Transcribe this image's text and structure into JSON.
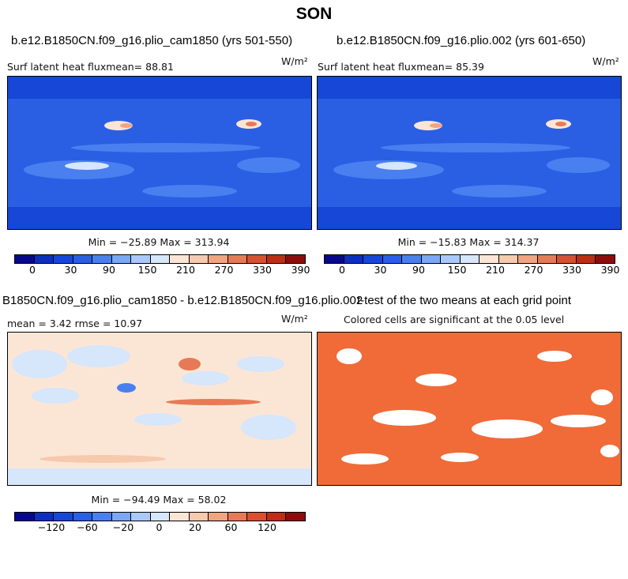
{
  "figure": {
    "title": "SON"
  },
  "panels": [
    {
      "title": "b.e12.B1850CN.f09_g16.plio_cam1850 (yrs 501-550)",
      "left_label": "Surf latent heat fluxmean=  88.81",
      "units": "W/m²",
      "stats": "Min = −25.89 Max = 313.94",
      "ticks": [
        "0",
        "30",
        "90",
        "150",
        "210",
        "270",
        "330",
        "390"
      ]
    },
    {
      "title": "b.e12.B1850CN.f09_g16.plio.002 (yrs 601-650)",
      "left_label": "Surf latent heat fluxmean=  85.39",
      "units": "W/m²",
      "stats": "Min = −15.83 Max = 314.37",
      "ticks": [
        "0",
        "30",
        "90",
        "150",
        "210",
        "270",
        "330",
        "390"
      ]
    },
    {
      "title": "B1850CN.f09_g16.plio_cam1850 - b.e12.B1850CN.f09_g16.plio.002",
      "left_label": "mean =   3.42    rmse =  10.97",
      "units": "W/m²",
      "stats": "Min = −94.49 Max = 58.02",
      "ticks": [
        "−120",
        "−60",
        "−20",
        "0",
        "20",
        "60",
        "120"
      ]
    },
    {
      "title": "t-test of the two means at each grid point",
      "left_label": "Colored cells are significant at the 0.05 level"
    }
  ],
  "colors": {
    "abs_scale": [
      "#08088f",
      "#0c2fc0",
      "#1747d6",
      "#2a5fe4",
      "#4a7ff0",
      "#7aa7f6",
      "#a9c9fb",
      "#d6e6fb",
      "#fbe6d6",
      "#f7c9ad",
      "#f1a482",
      "#e77a56",
      "#d8502f",
      "#be2d14",
      "#8e0c0c"
    ],
    "diff_scale": [
      "#08088f",
      "#0c2fc0",
      "#1747d6",
      "#2a5fe4",
      "#4a7ff0",
      "#7aa7f6",
      "#a9c9fb",
      "#d6e6fb",
      "#fbe6d6",
      "#f7c9ad",
      "#f1a482",
      "#e77a56",
      "#d8502f",
      "#be2d14",
      "#8e0c0c"
    ],
    "significance": "#f06b38"
  }
}
